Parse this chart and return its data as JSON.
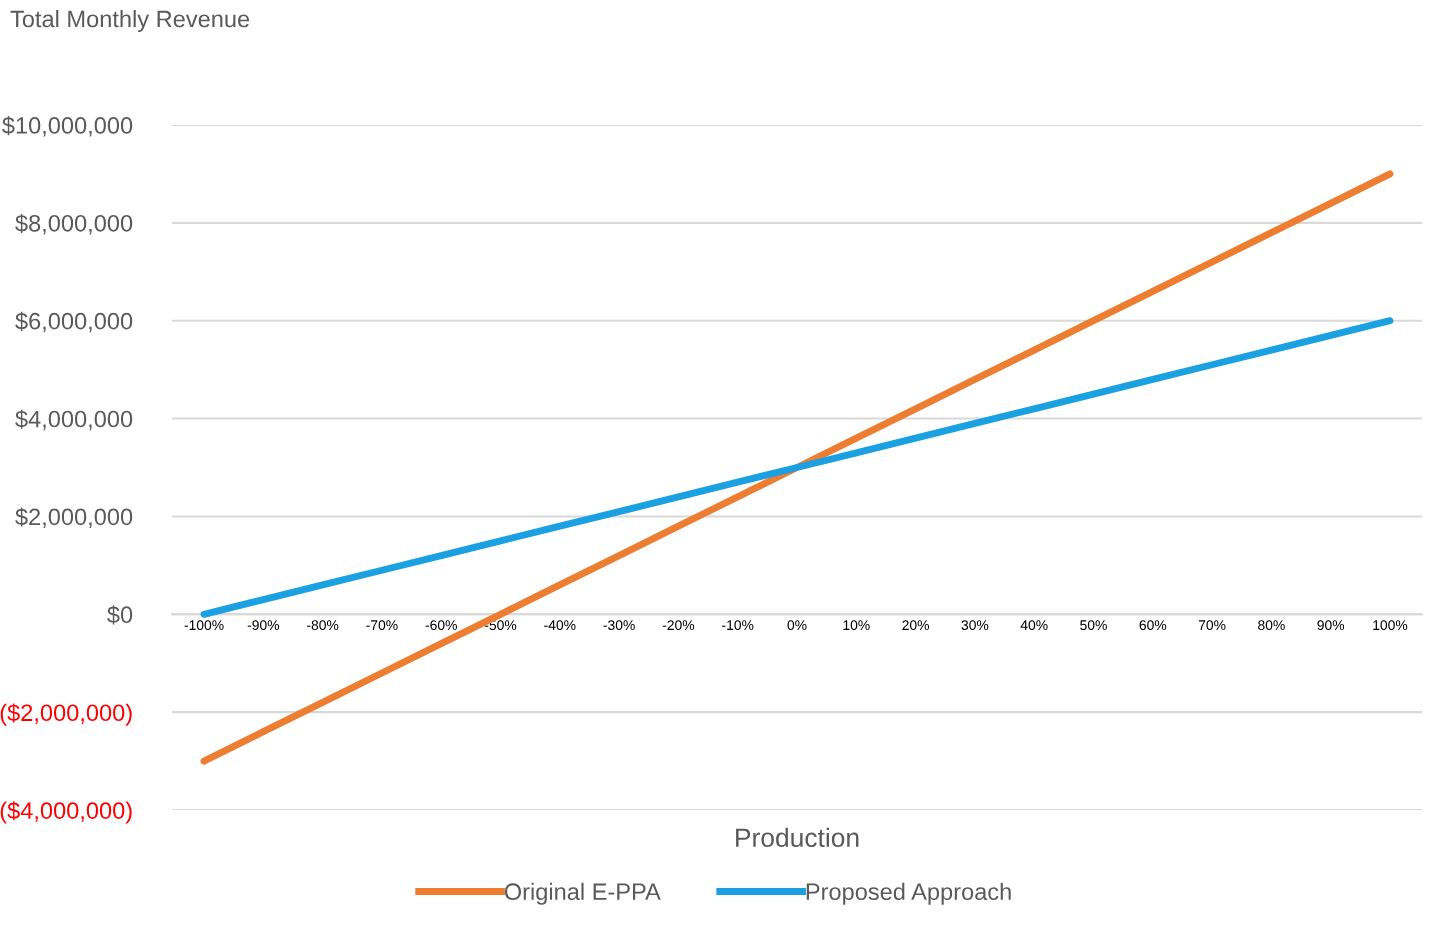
{
  "chart_data": {
    "type": "line",
    "ylabel": "Total Monthly Revenue",
    "xlabel": "Production",
    "categories": [
      "-100%",
      "-90%",
      "-80%",
      "-70%",
      "-60%",
      "-50%",
      "-40%",
      "-30%",
      "-20%",
      "-10%",
      "0%",
      "10%",
      "20%",
      "30%",
      "40%",
      "50%",
      "60%",
      "70%",
      "80%",
      "90%",
      "100%"
    ],
    "series": [
      {
        "name": "Original E-PPA",
        "color": "#ed7d31",
        "values": [
          -3000000,
          -2400000,
          -1800000,
          -1200000,
          -600000,
          0,
          600000,
          1200000,
          1800000,
          2400000,
          3000000,
          3600000,
          4200000,
          4800000,
          5400000,
          6000000,
          6600000,
          7200000,
          7800000,
          8400000,
          9000000
        ]
      },
      {
        "name": "Proposed Approach",
        "color": "#1ba1e2",
        "values": [
          0,
          300000,
          600000,
          900000,
          1200000,
          1500000,
          1800000,
          2100000,
          2400000,
          2700000,
          3000000,
          3300000,
          3600000,
          3900000,
          4200000,
          4500000,
          4800000,
          5100000,
          5400000,
          5700000,
          6000000
        ]
      }
    ],
    "ylim": [
      -4000000,
      10000000
    ],
    "yticks": [
      {
        "value": -4000000,
        "label": "($4,000,000)"
      },
      {
        "value": -2000000,
        "label": "($2,000,000)"
      },
      {
        "value": 0,
        "label": "$0"
      },
      {
        "value": 2000000,
        "label": "$2,000,000"
      },
      {
        "value": 4000000,
        "label": "$4,000,000"
      },
      {
        "value": 6000000,
        "label": "$6,000,000"
      },
      {
        "value": 8000000,
        "label": "$8,000,000"
      },
      {
        "value": 10000000,
        "label": "$10,000,000"
      }
    ],
    "grid": "y",
    "legend": "bottom",
    "marker": "none",
    "line_style": "solid"
  }
}
